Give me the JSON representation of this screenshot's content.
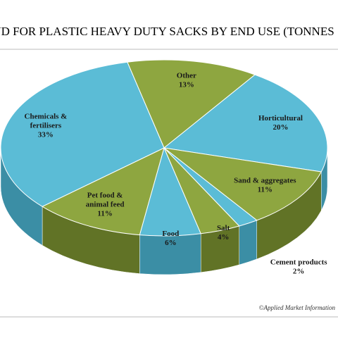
{
  "chart_data": {
    "type": "pie",
    "title": "ND FOR PLASTIC HEAVY DUTY SACKS BY END USE (TONNES",
    "source": "©Applied Market Information",
    "categories": [
      "Other",
      "Horticultural",
      "Sand & aggregates",
      "Cement products",
      "Salt",
      "Food",
      "Pet food & animal feed",
      "Chemicals & fertilisers"
    ],
    "values": [
      13,
      20,
      11,
      2,
      4,
      6,
      11,
      33
    ],
    "value_labels": [
      "13%",
      "20%",
      "11%",
      "2%",
      "4%",
      "6%",
      "11%",
      "33%"
    ],
    "colors": [
      "#8ea640",
      "#5bbcd6",
      "#8ea640",
      "#5bbcd6",
      "#8ea640",
      "#5bbcd6",
      "#8ea640",
      "#5bbcd6"
    ],
    "side_colors": [
      "#617326",
      "#3b8ea5",
      "#617326",
      "#3b8ea5",
      "#617326",
      "#3b8ea5",
      "#617326",
      "#3b8ea5"
    ]
  }
}
